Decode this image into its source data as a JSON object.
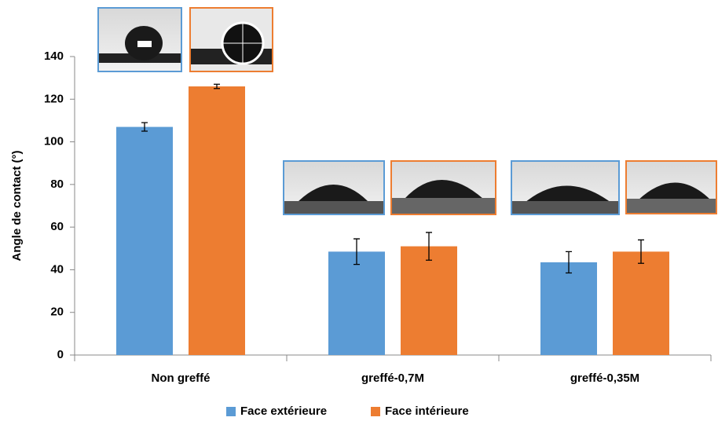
{
  "chart_data": {
    "type": "bar",
    "y_label": "Angle de contact (°)",
    "categories": [
      "Non greffé",
      "greffé-0,7M",
      "greffé-0,35M"
    ],
    "series": [
      {
        "name": "Face extérieure",
        "color": "#5b9bd5",
        "values": [
          107,
          48.5,
          43.5
        ],
        "errors": [
          2,
          6,
          5
        ]
      },
      {
        "name": "Face intérieure",
        "color": "#ed7d31",
        "values": [
          126,
          51,
          48.5
        ],
        "errors": [
          1,
          6.5,
          5.5
        ]
      }
    ],
    "ylim": [
      0,
      140
    ],
    "yticks": [
      0,
      20,
      40,
      60,
      80,
      100,
      120,
      140
    ],
    "legend": "bottom"
  }
}
